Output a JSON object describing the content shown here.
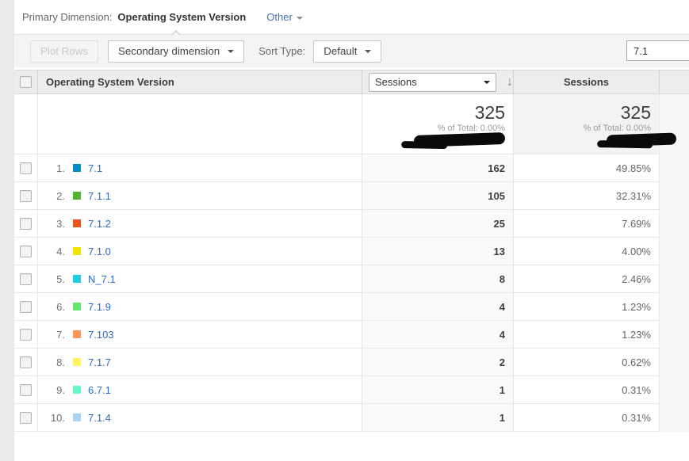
{
  "primary": {
    "label": "Primary Dimension:",
    "value": "Operating System Version",
    "other_label": "Other"
  },
  "toolbar": {
    "plot_rows_label": "Plot Rows",
    "secondary_dimension_label": "Secondary dimension",
    "sort_type_label": "Sort Type:",
    "sort_type_value": "Default",
    "search_value": "7.1"
  },
  "table": {
    "dimension_header": "Operating System Version",
    "metric_selector_value": "Sessions",
    "sort_icon": "↓",
    "metric_header": "Sessions",
    "summary": {
      "sessions": {
        "total": "325",
        "pct_of_total": "% of Total: 0.00%"
      },
      "sessions_pct": {
        "total": "325",
        "pct_of_total": "% of Total: 0.00%"
      }
    },
    "rows": [
      {
        "rank": "1.",
        "label": "7.1",
        "swatch": "#058DC7",
        "sessions": "162",
        "percent": "49.85%"
      },
      {
        "rank": "2.",
        "label": "7.1.1",
        "swatch": "#50B432",
        "sessions": "105",
        "percent": "32.31%"
      },
      {
        "rank": "3.",
        "label": "7.1.2",
        "swatch": "#ED561B",
        "sessions": "25",
        "percent": "7.69%"
      },
      {
        "rank": "4.",
        "label": "7.1.0",
        "swatch": "#EFE500",
        "sessions": "13",
        "percent": "4.00%"
      },
      {
        "rank": "5.",
        "label": "N_7.1",
        "swatch": "#24CBE5",
        "sessions": "8",
        "percent": "2.46%"
      },
      {
        "rank": "6.",
        "label": "7.1.9",
        "swatch": "#64E572",
        "sessions": "4",
        "percent": "1.23%"
      },
      {
        "rank": "7.",
        "label": "7.103",
        "swatch": "#FF9655",
        "sessions": "4",
        "percent": "1.23%"
      },
      {
        "rank": "8.",
        "label": "7.1.7",
        "swatch": "#FFF263",
        "sessions": "2",
        "percent": "0.62%"
      },
      {
        "rank": "9.",
        "label": "6.7.1",
        "swatch": "#6AF9C4",
        "sessions": "1",
        "percent": "0.31%"
      },
      {
        "rank": "10.",
        "label": "7.1.4",
        "swatch": "#A9D2F2",
        "sessions": "1",
        "percent": "0.31%"
      }
    ]
  },
  "colors": {
    "link_blue": "#2e6bb8",
    "redaction": "#0a0a0a"
  }
}
